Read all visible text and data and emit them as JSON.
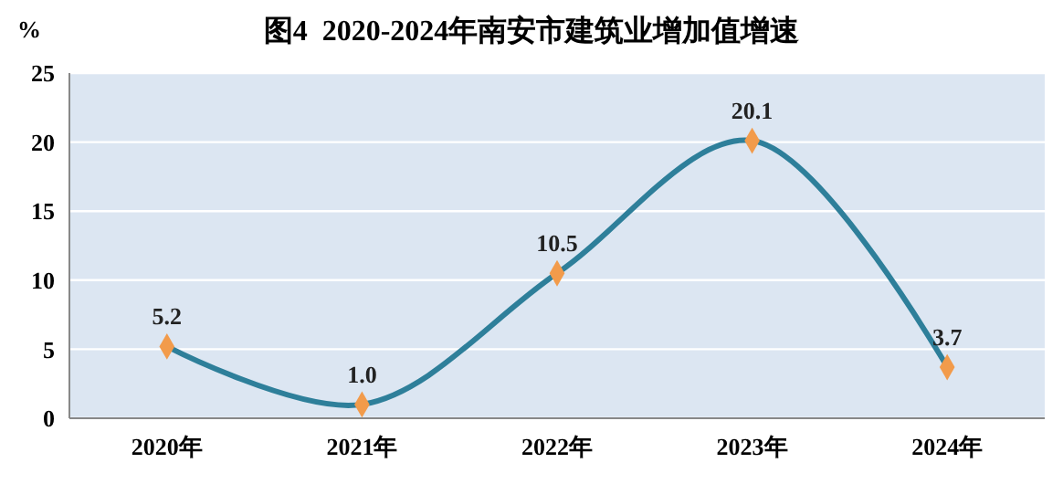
{
  "chart_data": {
    "type": "line",
    "title": "图4  2020-2024年南安市建筑业增加值增速",
    "ylabel": "%",
    "categories": [
      "2020年",
      "2021年",
      "2022年",
      "2023年",
      "2024年"
    ],
    "series": [
      {
        "color": "#2e7f9a",
        "values": [
          5.2,
          1.0,
          10.5,
          20.1,
          3.7
        ],
        "value_labels": [
          "5.2",
          "1.0",
          "10.5",
          "20.1",
          "3.7"
        ]
      }
    ],
    "ylim": [
      0,
      25
    ],
    "yticks": [
      0,
      5,
      10,
      15,
      20,
      25
    ],
    "grid": "y",
    "marker": "diamond",
    "line_style": "solid"
  }
}
